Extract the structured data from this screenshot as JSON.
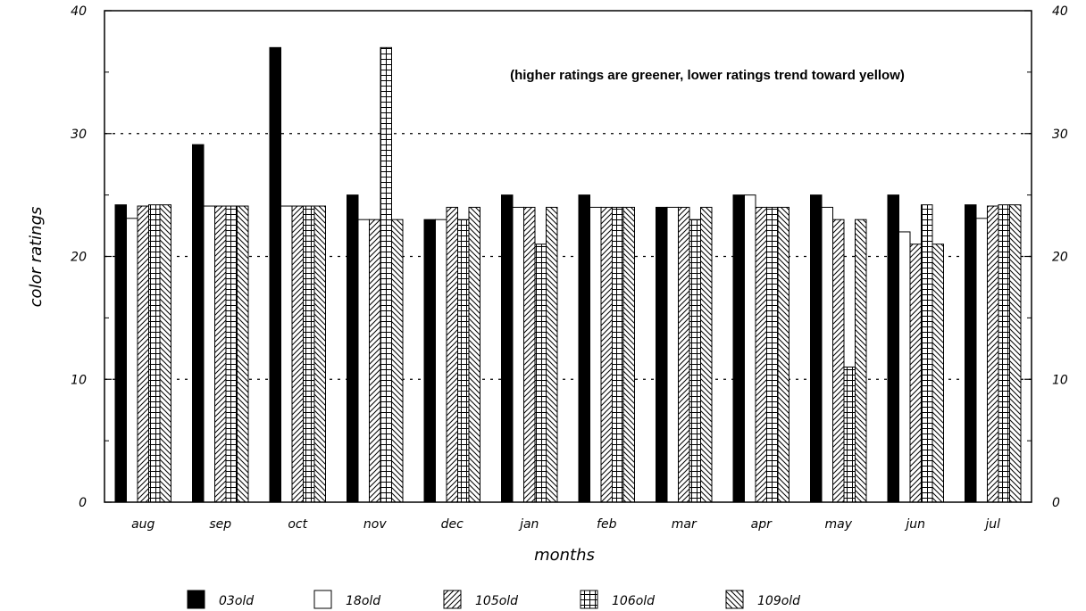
{
  "chart_data": {
    "type": "bar",
    "title": "",
    "annotation": "(higher ratings are greener, lower ratings trend toward yellow)",
    "xlabel": "months",
    "ylabel": "color ratings",
    "ylim": [
      0,
      40
    ],
    "yticks": [
      0,
      10,
      20,
      30,
      40
    ],
    "grid_lines": [
      10,
      20,
      30
    ],
    "legend_position": "bottom",
    "categories": [
      "aug",
      "sep",
      "oct",
      "nov",
      "dec",
      "jan",
      "feb",
      "mar",
      "apr",
      "may",
      "jun",
      "jul"
    ],
    "series": [
      {
        "name": "03old",
        "pattern": "solid",
        "values": [
          24.2,
          29.1,
          37,
          25,
          23,
          25,
          25,
          24,
          25,
          25,
          25,
          24.2
        ]
      },
      {
        "name": "18old",
        "pattern": "empty",
        "values": [
          23.1,
          24.1,
          24.1,
          23,
          23,
          24,
          24,
          24,
          25,
          24,
          22,
          23.1
        ]
      },
      {
        "name": "105old",
        "pattern": "diagonal",
        "values": [
          24.1,
          24.1,
          24.1,
          23,
          24,
          24,
          24,
          24,
          24,
          23,
          21,
          24.1
        ]
      },
      {
        "name": "106old",
        "pattern": "grid",
        "values": [
          24.2,
          24.1,
          24.1,
          37,
          23,
          21,
          24,
          23,
          24,
          11,
          24.2,
          24.2
        ]
      },
      {
        "name": "109old",
        "pattern": "backdiagonal",
        "values": [
          24.2,
          24.1,
          24.1,
          23,
          24,
          24,
          24,
          24,
          24,
          23,
          21,
          24.2
        ]
      }
    ]
  }
}
